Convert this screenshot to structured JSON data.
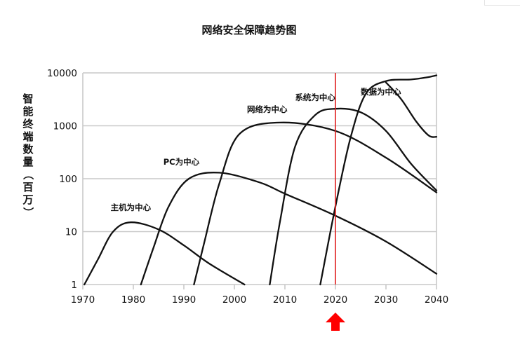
{
  "chart_data": {
    "type": "line",
    "title": "网络安全保障趋势图",
    "xlabel": "",
    "ylabel": "智能终端数量（百万）",
    "x_ticks": [
      1970,
      1980,
      1990,
      2000,
      2010,
      2020,
      2030,
      2040
    ],
    "y_ticks": [
      "1",
      "10",
      "100",
      "1000",
      "10000"
    ],
    "y_tick_values": [
      1,
      10,
      100,
      1000,
      10000
    ],
    "xlim": [
      1970,
      2040
    ],
    "ylim": [
      1,
      10000
    ],
    "y_scale": "log",
    "grid": "horizontal",
    "legend": "none",
    "series": [
      {
        "name": "主机为中心",
        "points": [
          [
            1970.3,
            1
          ],
          [
            1973,
            3
          ],
          [
            1976,
            10
          ],
          [
            1979.5,
            15
          ],
          [
            1985,
            11
          ],
          [
            1990,
            5.5
          ],
          [
            1995,
            2.5
          ],
          [
            2002,
            1
          ]
        ]
      },
      {
        "name": "PC为中心",
        "points": [
          [
            1981.5,
            1
          ],
          [
            1984,
            5
          ],
          [
            1987,
            30
          ],
          [
            1991,
            100
          ],
          [
            1997,
            130
          ],
          [
            2005,
            85
          ],
          [
            2010,
            52
          ],
          [
            2020,
            20
          ],
          [
            2030,
            6.5
          ],
          [
            2040,
            1.6
          ]
        ]
      },
      {
        "name": "网络为中心",
        "points": [
          [
            1992,
            1
          ],
          [
            1994,
            6
          ],
          [
            1997,
            80
          ],
          [
            2001,
            700
          ],
          [
            2009,
            1150
          ],
          [
            2020,
            800
          ],
          [
            2030,
            250
          ],
          [
            2040,
            55
          ]
        ]
      },
      {
        "name": "系统为中心",
        "points": [
          [
            2007,
            1
          ],
          [
            2009,
            15
          ],
          [
            2012,
            400
          ],
          [
            2016,
            1600
          ],
          [
            2020,
            2100
          ],
          [
            2025,
            1800
          ],
          [
            2030,
            800
          ],
          [
            2035,
            190
          ],
          [
            2040,
            60
          ]
        ]
      },
      {
        "name": "数据为中心",
        "points": [
          [
            2017,
            1
          ],
          [
            2020,
            30
          ],
          [
            2023,
            600
          ],
          [
            2026,
            4000
          ],
          [
            2030,
            7000
          ],
          [
            2035,
            7500
          ],
          [
            2038,
            8200
          ],
          [
            2040,
            9000
          ]
        ]
      }
    ],
    "series_right": [
      {
        "name": "数据为中心",
        "points": [
          [
            2030,
            6600
          ],
          [
            2033,
            3200
          ],
          [
            2036,
            1200
          ],
          [
            2038.5,
            650
          ],
          [
            2040,
            620
          ]
        ]
      }
    ],
    "reference_line": {
      "x": 2020,
      "color": "#e02020"
    },
    "marker": {
      "x": 2020,
      "shape": "up-arrow",
      "color": "#ff0000"
    }
  },
  "colors": {
    "line": "#111111",
    "grid": "#c9c9c9",
    "reference": "#e02020",
    "arrow": "#ff0000"
  }
}
